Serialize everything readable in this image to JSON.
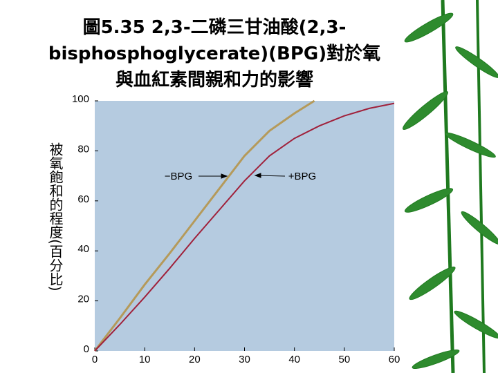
{
  "chart_data": {
    "type": "line",
    "title": [
      "圖5.35 2,3-二磷三甘油酸(2,3-",
      "bisphosphoglycerate)(BPG)對於氧",
      "與血紅素間親和力的影響"
    ],
    "ylabel": "被氧飽和的程度(百分比)",
    "xlim": [
      0,
      60
    ],
    "xticks": [
      0,
      10,
      20,
      30,
      40,
      50,
      60
    ],
    "ylim": [
      0,
      100
    ],
    "yticks": [
      0,
      20,
      40,
      60,
      80,
      100
    ],
    "grid": false,
    "series": [
      {
        "name": "−BPG",
        "color": "#b59a5a",
        "x": [
          0,
          5,
          10,
          15,
          20,
          25,
          30,
          35,
          40,
          44
        ],
        "values": [
          0,
          13,
          26.5,
          39,
          52,
          65,
          78,
          88,
          95,
          100
        ]
      },
      {
        "name": "+BPG",
        "color": "#a0203a",
        "x": [
          0,
          5,
          10,
          15,
          20,
          25,
          30,
          35,
          40,
          45,
          50,
          55,
          60
        ],
        "values": [
          0,
          10.5,
          21.5,
          33,
          45,
          56.5,
          68,
          78,
          85,
          90,
          94,
          97,
          99
        ]
      }
    ]
  }
}
